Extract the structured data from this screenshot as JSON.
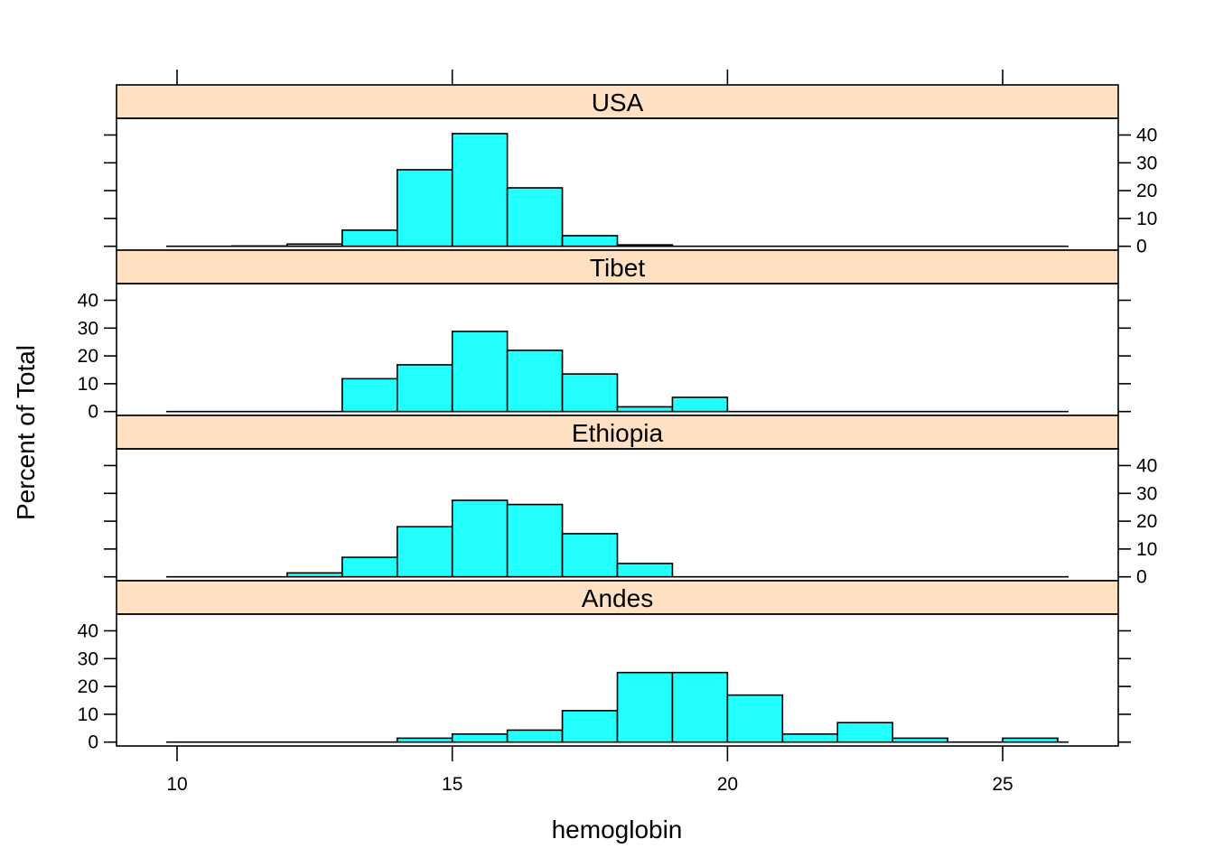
{
  "chart_data": {
    "type": "bar",
    "subtype": "histogram-trellis",
    "xlabel": "hemoglobin",
    "ylabel": "Percent of Total",
    "xlim": [
      8.9,
      27.1
    ],
    "ylim": [
      -1.4,
      46
    ],
    "x_ticks": [
      10,
      15,
      20,
      25
    ],
    "y_ticks": [
      0,
      10,
      20,
      30,
      40
    ],
    "bin_edges": [
      10,
      11,
      12,
      13,
      14,
      15,
      16,
      17,
      18,
      19,
      20,
      21,
      22,
      23,
      24,
      25,
      26
    ],
    "grid": false,
    "colors": {
      "bar_fill": "#21FFFF",
      "strip_fill": "#FFE0C2",
      "line": "#000000"
    },
    "panels": [
      {
        "name": "USA",
        "y_axis_side": "right",
        "values": [
          0,
          0.1,
          0.8,
          5.8,
          27.5,
          40.5,
          21,
          3.8,
          0.5,
          0,
          0,
          0,
          0,
          0,
          0,
          0
        ]
      },
      {
        "name": "Tibet",
        "y_axis_side": "left",
        "values": [
          0,
          0,
          0,
          11.8,
          16.8,
          28.8,
          22,
          13.5,
          1.7,
          5.1,
          0,
          0,
          0,
          0,
          0,
          0
        ]
      },
      {
        "name": "Ethiopia",
        "y_axis_side": "right",
        "values": [
          0,
          0,
          1.4,
          7,
          18,
          27.5,
          26,
          15.5,
          4.8,
          0,
          0,
          0,
          0,
          0,
          0,
          0
        ]
      },
      {
        "name": "Andes",
        "y_axis_side": "left",
        "values": [
          0,
          0,
          0,
          0,
          1.4,
          2.9,
          4.3,
          11.3,
          25,
          25,
          16.9,
          2.9,
          7,
          1.4,
          0,
          1.4
        ]
      }
    ]
  }
}
